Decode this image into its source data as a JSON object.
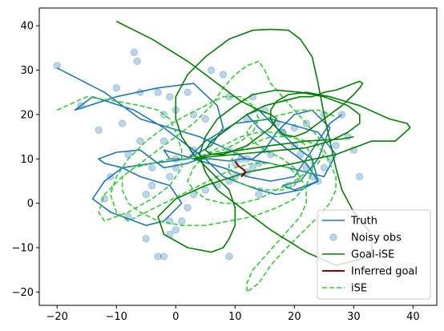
{
  "chart_data": {
    "type": "line",
    "title": "",
    "xlabel": "",
    "ylabel": "",
    "xlim": [
      -23,
      44
    ],
    "ylim": [
      -23,
      44
    ],
    "xticks": [
      -20,
      -10,
      0,
      10,
      20,
      30,
      40
    ],
    "yticks": [
      -20,
      -10,
      0,
      10,
      20,
      30,
      40
    ],
    "xtick_labels": [
      "−20",
      "−10",
      "0",
      "10",
      "20",
      "30",
      "40"
    ],
    "ytick_labels": [
      "−20",
      "−10",
      "0",
      "10",
      "20",
      "30",
      "40"
    ],
    "grid": false,
    "legend_position": "lower-right",
    "series": [
      {
        "name": "Truth",
        "style": "solid",
        "color": "#1f77b4",
        "x": [
          -20,
          -12,
          -6,
          4,
          9,
          12,
          16,
          19,
          22,
          25,
          27,
          24,
          16,
          10,
          5,
          2,
          -4,
          -9,
          -12,
          -14,
          -11,
          -5,
          -2,
          1,
          -1,
          -6,
          -9,
          -12,
          -13,
          -10,
          -6,
          -4,
          -2,
          0,
          2,
          4,
          6,
          9,
          11,
          13,
          15,
          17,
          20,
          23,
          26,
          24,
          21,
          18,
          20,
          24,
          22,
          18,
          14,
          12,
          14,
          17,
          20,
          23,
          24,
          21,
          17,
          14,
          12,
          10,
          8,
          5,
          2,
          -2,
          -7,
          -14,
          -17,
          -10,
          -3,
          3,
          7,
          8,
          6,
          2,
          -1,
          -2,
          3,
          8,
          12,
          16,
          20,
          23,
          26,
          28
        ],
        "y": [
          30.5,
          25,
          19,
          15,
          12,
          10,
          9,
          8,
          7,
          6,
          11,
          16,
          19,
          18,
          14,
          10,
          9,
          8,
          5,
          1,
          -2,
          -5,
          -4,
          0,
          4,
          6,
          8,
          9,
          10,
          11.5,
          12,
          10,
          8,
          8.5,
          9,
          10,
          10,
          9.5,
          10,
          10,
          12,
          16,
          20,
          21,
          17,
          10,
          5,
          4,
          3,
          5,
          9,
          13,
          17,
          20,
          21,
          17,
          13,
          10,
          5,
          3,
          2,
          3,
          4,
          5,
          6,
          10,
          13,
          17,
          21,
          24,
          21,
          24,
          26,
          27,
          22,
          17,
          13,
          10,
          10,
          12,
          10,
          8,
          6,
          5,
          6,
          12,
          18,
          20
        ]
      },
      {
        "name": "Noisy obs",
        "style": "markers",
        "color": "#1f77b4",
        "x": [
          -20,
          -7,
          -6.5,
          -16,
          -13,
          -9,
          -10,
          -6,
          -6,
          -8,
          -4,
          -2,
          -2,
          -3,
          0,
          -1,
          2,
          3,
          5,
          6,
          8,
          9,
          10,
          11,
          12,
          13,
          15,
          17,
          18,
          20,
          21,
          22,
          23,
          24,
          25,
          26,
          27,
          28,
          29,
          30,
          31,
          25,
          22,
          20,
          18,
          16,
          14,
          13,
          12,
          10,
          9,
          7,
          5,
          3,
          2,
          1,
          0,
          -1,
          -2,
          -3,
          -5,
          -8,
          -12,
          -11,
          3,
          6,
          9,
          12,
          15,
          0,
          0,
          -1,
          -4,
          -5,
          14,
          19,
          9,
          -1
        ],
        "y": [
          31,
          34,
          32,
          22,
          16.5,
          18,
          26,
          25,
          14,
          11,
          8,
          14,
          20,
          25,
          21,
          24,
          25,
          20,
          19,
          30,
          29,
          24,
          9,
          10,
          19,
          24,
          21,
          18,
          16,
          13,
          11,
          8,
          6,
          5,
          8,
          10,
          13,
          20,
          15,
          12,
          6,
          20,
          18,
          17,
          16,
          11,
          9,
          8,
          7,
          6,
          5,
          4,
          3,
          2,
          -1,
          -4,
          -6,
          -7,
          -12,
          -12,
          -8,
          -3,
          1,
          6,
          12,
          14,
          12,
          10,
          12,
          10,
          8,
          6,
          4,
          2,
          2,
          4,
          -12,
          -4
        ]
      },
      {
        "name": "Goal-iSE",
        "style": "solid",
        "color": "#008000",
        "x": [
          -10,
          -4,
          2,
          7,
          11,
          14,
          16,
          17,
          16,
          14,
          12,
          10,
          8,
          6,
          5,
          6,
          9,
          12,
          15,
          18,
          21,
          23,
          25,
          27,
          28,
          29,
          30,
          31,
          31.5,
          31,
          30,
          28,
          25,
          22,
          20,
          18,
          17,
          16,
          16,
          17,
          19,
          22,
          26,
          31,
          36,
          39,
          39.5,
          37,
          33,
          27,
          20,
          12,
          5,
          0,
          -3,
          -2,
          2,
          6,
          8,
          9,
          10,
          10,
          9,
          6,
          3,
          1,
          0,
          0,
          2,
          5,
          9,
          13,
          16,
          19,
          21,
          23,
          24,
          25,
          26,
          27,
          28,
          30,
          33,
          33,
          27,
          22,
          16,
          11,
          7,
          5,
          4,
          5,
          7,
          10,
          13,
          17,
          21,
          25,
          29,
          31,
          31,
          29,
          26,
          22,
          18,
          14,
          10,
          6,
          3,
          3,
          6,
          11,
          16,
          22,
          28,
          30
        ],
        "y": [
          41,
          37,
          32,
          27,
          23,
          21,
          20,
          19,
          17,
          15,
          13,
          12,
          11,
          11,
          12,
          14,
          17,
          20,
          22,
          23,
          24,
          24,
          25,
          25.5,
          26,
          26.5,
          27,
          27.5,
          27,
          26,
          24.5,
          22,
          19,
          16,
          15,
          15.5,
          17,
          19,
          21,
          23,
          24.5,
          25,
          24,
          22,
          19,
          18,
          17,
          14,
          14,
          11,
          9,
          7,
          4,
          1,
          -3,
          -7,
          -10,
          -11,
          -10,
          -8,
          -5,
          -1,
          3,
          7,
          11,
          15,
          19,
          24,
          29,
          33,
          37,
          39,
          39.2,
          39,
          37,
          33,
          27,
          20,
          14,
          8,
          3,
          -2,
          -7,
          -12,
          -14,
          -11,
          -6,
          -1,
          3,
          7,
          11,
          15,
          19,
          22,
          24.5,
          25.5,
          25,
          24,
          22,
          20,
          18,
          16,
          14,
          12.5,
          12,
          11.5,
          11,
          10.5,
          10,
          10,
          11,
          12,
          13,
          14,
          14.5,
          15
        ]
      },
      {
        "name": "Inferred goal",
        "style": "solid",
        "color": "#8b0000",
        "x": [
          10,
          10.5,
          11,
          11.5,
          11.8,
          11.5,
          11
        ],
        "y": [
          9.5,
          8.5,
          8,
          7.5,
          7,
          6.5,
          6
        ]
      },
      {
        "name": "iSE",
        "style": "dashed",
        "color": "#32cd32",
        "x": [
          -20,
          -15,
          -10,
          -6,
          -3,
          -1,
          0,
          1,
          1,
          -1,
          -4,
          -8,
          -12,
          -13,
          -12,
          -9,
          -5,
          -1,
          3,
          6,
          8,
          10,
          12,
          14,
          15,
          16,
          18,
          20,
          22,
          24,
          25,
          26,
          27,
          27,
          26,
          24,
          21,
          18,
          16,
          15,
          14,
          13,
          12,
          12,
          13,
          15,
          17,
          19,
          21,
          22,
          22,
          21,
          19,
          16,
          13,
          10,
          7,
          4,
          1,
          -2,
          -5,
          -8,
          -10,
          -11,
          -10,
          -8,
          -5,
          -2,
          2,
          5,
          8,
          11,
          13,
          14,
          13,
          11,
          8,
          5,
          2,
          -1,
          -4,
          -7,
          -9,
          -9,
          -8,
          -6,
          -3,
          1,
          5,
          9,
          13,
          17,
          20,
          22,
          23,
          23,
          22,
          20,
          17,
          14,
          11,
          8,
          5,
          3,
          2,
          3,
          5,
          8,
          11,
          14,
          17,
          20,
          22,
          24,
          25,
          24,
          22,
          19,
          16,
          14,
          12,
          10,
          9,
          9,
          10,
          12,
          15,
          18,
          20,
          21,
          20,
          18,
          15,
          13,
          12,
          13,
          15,
          18,
          21,
          24,
          26,
          27
        ],
        "y": [
          21,
          24,
          23,
          22,
          21,
          19,
          16,
          12,
          8,
          4,
          1,
          -2,
          -4,
          -2,
          2,
          6,
          10,
          14,
          18,
          22,
          26,
          29,
          31,
          32,
          30,
          27,
          24,
          21,
          18,
          15,
          12,
          9,
          6,
          3,
          0,
          -3,
          -7,
          -11,
          -14,
          -16,
          -18,
          -19,
          -20,
          -18,
          -15,
          -12,
          -9,
          -6,
          -3,
          0,
          3,
          6,
          8,
          9,
          9,
          8,
          6,
          4,
          2,
          0,
          -2,
          -4,
          -2,
          2,
          6,
          10,
          14,
          17,
          20,
          22,
          24,
          24,
          22,
          19,
          16,
          14,
          12,
          11,
          10,
          10,
          9,
          8,
          6,
          3,
          0,
          -2,
          -4,
          -5,
          -5,
          -4,
          -3,
          -1,
          1,
          4,
          7,
          10,
          13,
          15,
          16,
          16,
          15,
          13,
          11,
          8,
          5,
          3,
          1,
          0,
          0,
          1,
          3,
          5,
          7,
          9,
          11,
          13,
          14,
          15,
          15,
          14,
          13,
          11,
          9,
          7,
          5,
          4,
          3,
          3,
          4,
          6,
          8,
          10,
          12,
          14,
          16,
          18,
          19,
          20,
          21,
          21,
          20,
          19.5
        ]
      }
    ]
  }
}
